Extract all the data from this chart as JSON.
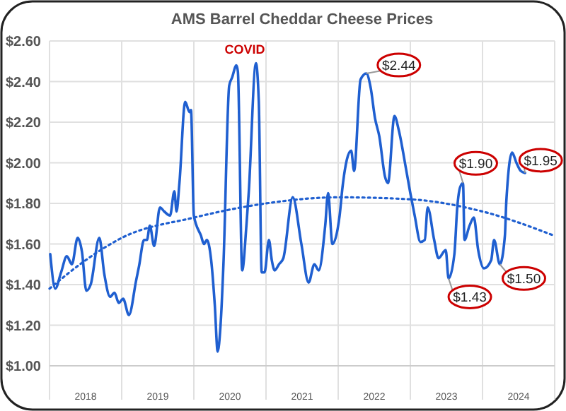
{
  "chart_data": {
    "type": "line",
    "title": "AMS Barrel Cheddar Cheese Prices",
    "xlim": [
      2018,
      2025
    ],
    "xticks": [
      {
        "value": 2018,
        "label": null
      },
      {
        "value": 2018.5,
        "label": "2018"
      },
      {
        "value": 2019,
        "label": null
      },
      {
        "value": 2019.5,
        "label": "2019"
      },
      {
        "value": 2020,
        "label": null
      },
      {
        "value": 2020.5,
        "label": "2020"
      },
      {
        "value": 2021,
        "label": null
      },
      {
        "value": 2021.5,
        "label": "2021"
      },
      {
        "value": 2022,
        "label": null
      },
      {
        "value": 2022.5,
        "label": "2022"
      },
      {
        "value": 2023,
        "label": null
      },
      {
        "value": 2023.5,
        "label": "2023"
      },
      {
        "value": 2024,
        "label": null
      },
      {
        "value": 2024.5,
        "label": "2024"
      },
      {
        "value": 2025,
        "label": null
      }
    ],
    "ylim": [
      1,
      2.6
    ],
    "yticks": [
      {
        "value": 1,
        "label": "$1.00"
      },
      {
        "value": 1.2,
        "label": "$1.20"
      },
      {
        "value": 1.4,
        "label": "$1.40"
      },
      {
        "value": 1.6,
        "label": "$1.60"
      },
      {
        "value": 1.8,
        "label": "$1.80"
      },
      {
        "value": 2,
        "label": "$2.00"
      },
      {
        "value": 2.2,
        "label": "$2.20"
      },
      {
        "value": 2.4,
        "label": "$2.40"
      },
      {
        "value": 2.6,
        "label": "$2.60"
      }
    ],
    "grid": true,
    "series": [
      {
        "color": "#1f5fd0",
        "line_style": "solid",
        "x": [
          2018.01,
          2018.08,
          2018.16,
          2018.24,
          2018.31,
          2018.39,
          2018.45,
          2018.51,
          2018.57,
          2018.69,
          2018.76,
          2018.84,
          2018.9,
          2018.96,
          2019.02,
          2019.1,
          2019.2,
          2019.24,
          2019.31,
          2019.35,
          2019.39,
          2019.45,
          2019.53,
          2019.59,
          2019.67,
          2019.73,
          2019.76,
          2019.8,
          2019.88,
          2019.94,
          2019.96,
          2020,
          2020.1,
          2020.14,
          2020.18,
          2020.24,
          2020.29,
          2020.33,
          2020.37,
          2020.41,
          2020.49,
          2020.53,
          2020.59,
          2020.61,
          2020.67,
          2020.73,
          2020.76,
          2020.86,
          2020.9,
          2020.94,
          2020.98,
          2021.04,
          2021.08,
          2021.12,
          2021.18,
          2021.24,
          2021.37,
          2021.49,
          2021.59,
          2021.67,
          2021.73,
          2021.82,
          2021.86,
          2021.92,
          2022.02,
          2022.06,
          2022.18,
          2022.22,
          2022.31,
          2022.39,
          2022.45,
          2022.51,
          2022.57,
          2022.65,
          2022.69,
          2022.78,
          2022.84,
          2022.94,
          2023,
          2023.06,
          2023.14,
          2023.2,
          2023.24,
          2023.33,
          2023.39,
          2023.49,
          2023.53,
          2023.61,
          2023.65,
          2023.69,
          2023.73,
          2023.75,
          2023.82,
          2023.88,
          2023.94,
          2024.02,
          2024.12,
          2024.16,
          2024.24,
          2024.31,
          2024.33,
          2024.41,
          2024.47,
          2024.53,
          2024.59
        ],
        "values": [
          1.55,
          1.38,
          1.46,
          1.54,
          1.5,
          1.63,
          1.56,
          1.37,
          1.4,
          1.63,
          1.45,
          1.34,
          1.36,
          1.31,
          1.33,
          1.25,
          1.42,
          1.49,
          1.62,
          1.62,
          1.69,
          1.59,
          1.78,
          1.76,
          1.74,
          1.86,
          1.76,
          1.9,
          2.3,
          2.25,
          2.26,
          1.74,
          1.64,
          1.6,
          1.62,
          1.52,
          1.3,
          1.07,
          1.2,
          1.5,
          2.38,
          2.42,
          2.48,
          2.45,
          1.47,
          1.7,
          1.85,
          2.49,
          2.3,
          1.46,
          1.46,
          1.62,
          1.52,
          1.47,
          1.5,
          1.53,
          1.83,
          1.6,
          1.41,
          1.5,
          1.47,
          1.69,
          1.85,
          1.6,
          1.74,
          1.88,
          2.06,
          1.96,
          2.41,
          2.44,
          2.37,
          2.22,
          2.13,
          1.93,
          1.9,
          2.23,
          2.16,
          1.97,
          1.85,
          1.74,
          1.61,
          1.62,
          1.78,
          1.62,
          1.53,
          1.57,
          1.43,
          1.55,
          1.78,
          1.88,
          1.9,
          1.62,
          1.69,
          1.73,
          1.57,
          1.48,
          1.52,
          1.62,
          1.5,
          1.64,
          1.81,
          2.05,
          2,
          1.96,
          1.95
        ]
      },
      {
        "color": "#1f5fd0",
        "line_style": "dotted",
        "x": [
          2018,
          2018.5,
          2019,
          2020,
          2021,
          2022,
          2023,
          2024,
          2025
        ],
        "values": [
          1.38,
          1.52,
          1.63,
          1.73,
          1.8,
          1.83,
          1.82,
          1.76,
          1.64
        ]
      }
    ],
    "annotations": [
      "COVID",
      {
        "text": "$2.44",
        "x": 2022.39,
        "y": 2.44
      },
      {
        "text": "$1.90",
        "x": 2023.73,
        "y": 1.9
      },
      {
        "text": "$1.95",
        "x": 2024.59,
        "y": 1.95
      },
      {
        "text": "$1.43",
        "x": 2023.53,
        "y": 1.43
      },
      {
        "text": "$1.50",
        "x": 2024.24,
        "y": 1.5
      }
    ]
  }
}
